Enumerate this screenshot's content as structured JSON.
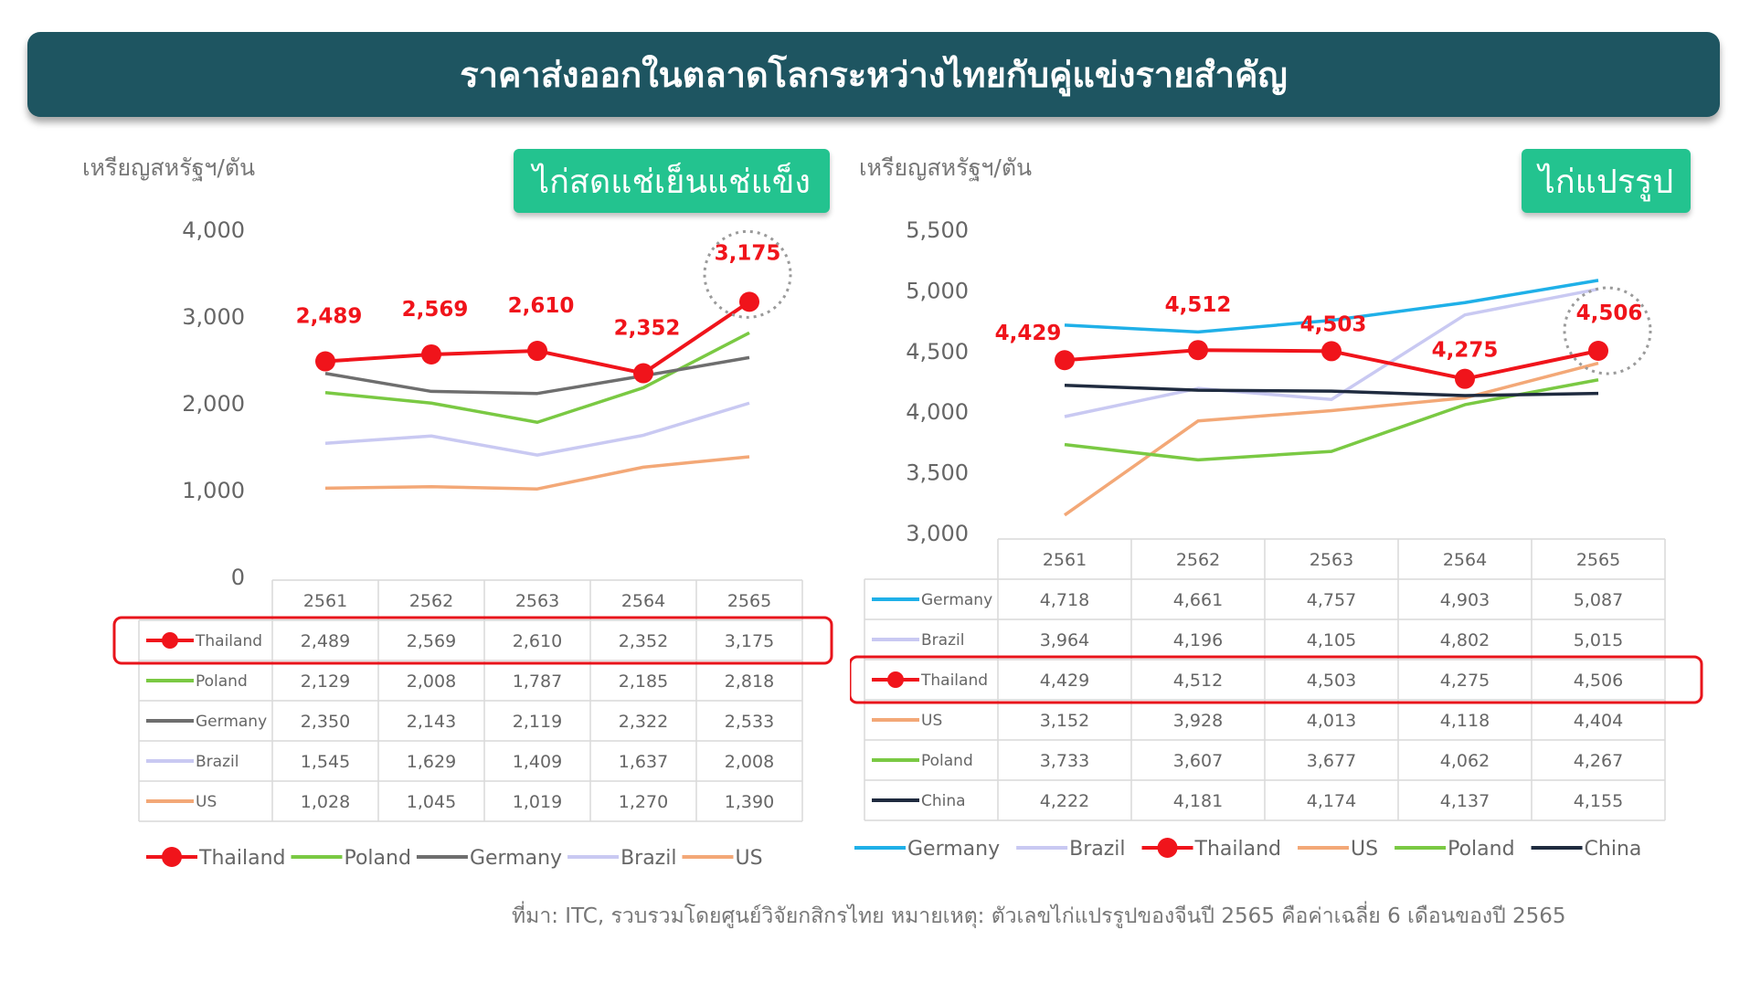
{
  "title": "ราคาส่งออกในตลาดโลกระหว่างไทยกับคู่แข่งรายสำคัญ",
  "source_note": "ที่มา: ITC, รวบรวมโดยศูนย์วิจัยกสิกรไทย  หมายเหตุ: ตัวเลขไก่แปรรูปของจีนปี 2565 คือค่าเฉลี่ย 6 เดือนของปี 2565",
  "colors": {
    "banner": "#1e5561",
    "tag": "#23c38f",
    "highlight": "#e8141b",
    "Thailand": "#f0141b",
    "Poland": "#7ac943",
    "Germany": "#6e6e6e",
    "Germany_light_blue": "#1fb0e8",
    "Brazil": "#c9c9f2",
    "US": "#f3a877",
    "China": "#1f2b3f"
  },
  "chart_data": [
    {
      "type": "line",
      "panel_title": "ไก่สดแช่เย็นแช่แข็ง",
      "ylabel": "เหรียญสหรัฐฯ/ตัน",
      "ylim": [
        0,
        4000
      ],
      "yticks": [
        "4,000",
        "3,000",
        "2,000",
        "1,000",
        "0"
      ],
      "x": [
        "2561",
        "2562",
        "2563",
        "2564",
        "2565"
      ],
      "highlight_series": "Thailand",
      "series": [
        {
          "name": "Thailand",
          "color": "#f0141b",
          "values": [
            2489,
            2569,
            2610,
            2352,
            3175
          ],
          "labels": [
            "2,489",
            "2,569",
            "2,610",
            "2,352",
            "3,175"
          ]
        },
        {
          "name": "Poland",
          "color": "#7ac943",
          "values": [
            2129,
            2008,
            1787,
            2185,
            2818
          ],
          "labels": [
            "2,129",
            "2,008",
            "1,787",
            "2,185",
            "2,818"
          ]
        },
        {
          "name": "Germany",
          "color": "#6e6e6e",
          "values": [
            2350,
            2143,
            2119,
            2322,
            2533
          ],
          "labels": [
            "2,350",
            "2,143",
            "2,119",
            "2,322",
            "2,533"
          ]
        },
        {
          "name": "Brazil",
          "color": "#c9c9f2",
          "values": [
            1545,
            1629,
            1409,
            1637,
            2008
          ],
          "labels": [
            "1,545",
            "1,629",
            "1,409",
            "1,637",
            "2,008"
          ]
        },
        {
          "name": "US",
          "color": "#f3a877",
          "values": [
            1028,
            1045,
            1019,
            1270,
            1390
          ],
          "labels": [
            "1,028",
            "1,045",
            "1,019",
            "1,270",
            "1,390"
          ]
        }
      ],
      "legend": "bottom"
    },
    {
      "type": "line",
      "panel_title": "ไก่แปรรูป",
      "ylabel": "เหรียญสหรัฐฯ/ตัน",
      "ylim": [
        3000,
        5500
      ],
      "yticks": [
        "5,500",
        "5,000",
        "4,500",
        "4,000",
        "3,500",
        "3,000"
      ],
      "x": [
        "2561",
        "2562",
        "2563",
        "2564",
        "2565"
      ],
      "highlight_series": "Thailand",
      "series": [
        {
          "name": "Germany",
          "color": "#1fb0e8",
          "values": [
            4718,
            4661,
            4757,
            4903,
            5087
          ],
          "labels": [
            "4,718",
            "4,661",
            "4,757",
            "4,903",
            "5,087"
          ]
        },
        {
          "name": "Brazil",
          "color": "#c9c9f2",
          "values": [
            3964,
            4196,
            4105,
            4802,
            5015
          ],
          "labels": [
            "3,964",
            "4,196",
            "4,105",
            "4,802",
            "5,015"
          ]
        },
        {
          "name": "Thailand",
          "color": "#f0141b",
          "values": [
            4429,
            4512,
            4503,
            4275,
            4506
          ],
          "labels": [
            "4,429",
            "4,512",
            "4,503",
            "4,275",
            "4,506"
          ]
        },
        {
          "name": "US",
          "color": "#f3a877",
          "values": [
            3152,
            3928,
            4013,
            4118,
            4404
          ],
          "labels": [
            "3,152",
            "3,928",
            "4,013",
            "4,118",
            "4,404"
          ]
        },
        {
          "name": "Poland",
          "color": "#7ac943",
          "values": [
            3733,
            3607,
            3677,
            4062,
            4267
          ],
          "labels": [
            "3,733",
            "3,607",
            "3,677",
            "4,062",
            "4,267"
          ]
        },
        {
          "name": "China",
          "color": "#1f2b3f",
          "values": [
            4222,
            4181,
            4174,
            4137,
            4155
          ],
          "labels": [
            "4,222",
            "4,181",
            "4,174",
            "4,137",
            "4,155"
          ]
        }
      ],
      "legend": "bottom"
    }
  ]
}
